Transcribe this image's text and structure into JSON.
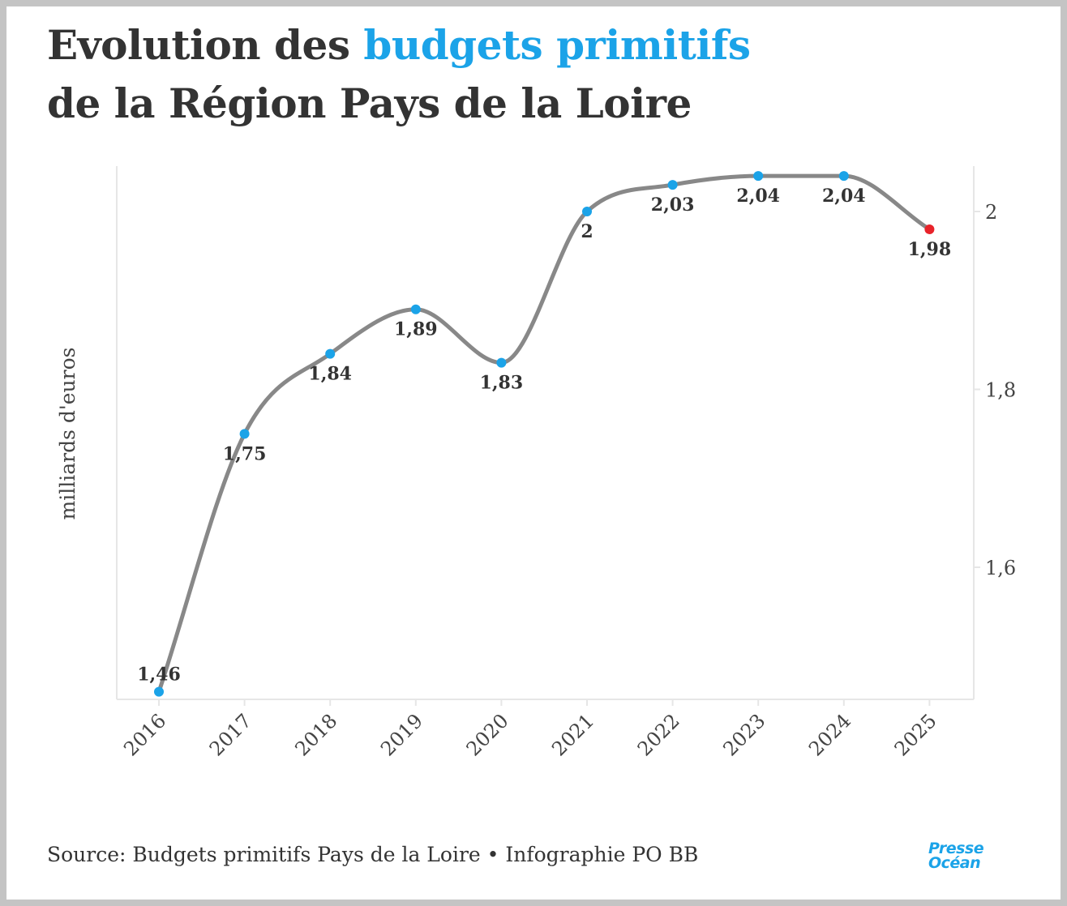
{
  "title": {
    "part1": "Evolution des ",
    "highlight": "budgets primitifs",
    "line2": "de la Région Pays de la Loire"
  },
  "colors": {
    "accent": "#1ba3e8",
    "line": "#888888",
    "last_point": "#e8232a",
    "text": "#333333"
  },
  "chart_data": {
    "type": "line",
    "categories": [
      "2016",
      "2017",
      "2018",
      "2019",
      "2020",
      "2021",
      "2022",
      "2023",
      "2024",
      "2025"
    ],
    "values": [
      1.46,
      1.75,
      1.84,
      1.89,
      1.83,
      2.0,
      2.03,
      2.04,
      2.04,
      1.98
    ],
    "value_labels": [
      "1,46",
      "1,75",
      "1,84",
      "1,89",
      "1,83",
      "2",
      "2,03",
      "2,04",
      "2,04",
      "1,98"
    ],
    "ylabel": "milliards d'euros",
    "ylim": [
      1.45,
      2.05
    ],
    "y_ticks": [
      1.6,
      1.8,
      2.0
    ],
    "y_tick_labels": [
      "1,6",
      "1,8",
      "2"
    ],
    "y_axis_side": "right",
    "grid": false,
    "highlight_last": true
  },
  "footer": {
    "source": "Source: Budgets primitifs Pays de la Loire • Infographie PO BB",
    "logo_line1": "Presse",
    "logo_line2": "Océan"
  }
}
